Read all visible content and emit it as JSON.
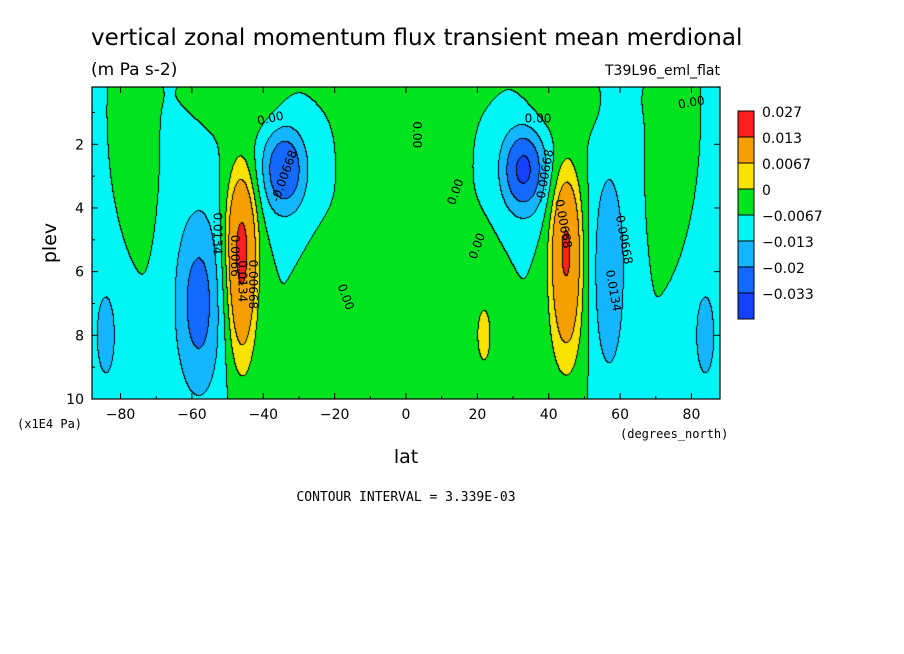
{
  "chart_data": {
    "type": "heatmap",
    "title": "vertical zonal momentum flux transient mean merdional",
    "subtitle": "(m Pa s-2)",
    "run_label": "T39L96_eml_flat",
    "xlabel": "lat",
    "x_units": "(degrees_north)",
    "ylabel": "plev",
    "y_units": "(x1E4 Pa)",
    "footer": "CONTOUR INTERVAL = 3.339E-03",
    "xlim": [
      -88,
      88
    ],
    "ylim": [
      10,
      0.2
    ],
    "x_ticks": [
      -80,
      -60,
      -40,
      -20,
      0,
      20,
      40,
      60,
      80
    ],
    "x_tick_labels": [
      "−80",
      "−60",
      "−40",
      "−20",
      "0",
      "20",
      "40",
      "60",
      "80"
    ],
    "y_ticks": [
      2,
      4,
      6,
      8,
      10
    ],
    "y_tick_labels": [
      "2",
      "4",
      "6",
      "8",
      "10"
    ],
    "legend": {
      "position": "right",
      "levels": [
        "0.027",
        "0.013",
        "0.0067",
        "0",
        "−0.0067",
        "−0.013",
        "−0.02",
        "−0.033"
      ],
      "colors": [
        "#ff1f1f",
        "#f5a000",
        "#f7e200",
        "#00e41f",
        "#00f6f6",
        "#14b6ff",
        "#1469ff",
        "#1440ff"
      ]
    },
    "features": [
      {
        "lat": -46,
        "plev": 5.0,
        "value": 0.027,
        "sigma_lat": 3.0,
        "sigma_p": 1.6
      },
      {
        "lat": 45,
        "plev": 5.0,
        "value": 0.025,
        "sigma_lat": 3.0,
        "sigma_p": 1.6
      },
      {
        "lat": -46,
        "plev": 7.5,
        "value": 0.012,
        "sigma_lat": 3.0,
        "sigma_p": 1.6
      },
      {
        "lat": 45,
        "plev": 7.5,
        "value": 0.011,
        "sigma_lat": 3.5,
        "sigma_p": 1.6
      },
      {
        "lat": -34,
        "plev": 2.8,
        "value": -0.02,
        "sigma_lat": 4.5,
        "sigma_p": 1.0
      },
      {
        "lat": 33,
        "plev": 2.8,
        "value": -0.022,
        "sigma_lat": 4.5,
        "sigma_p": 1.0
      },
      {
        "lat": -58,
        "plev": 7.0,
        "value": -0.016,
        "sigma_lat": 5.0,
        "sigma_p": 2.2
      },
      {
        "lat": 57,
        "plev": 6.0,
        "value": -0.013,
        "sigma_lat": 3.5,
        "sigma_p": 2.5
      },
      {
        "lat": 0,
        "plev": 6.0,
        "value": 0.0045,
        "sigma_lat": 7.0,
        "sigma_p": 6.0
      },
      {
        "lat": 0,
        "plev": 1.0,
        "value": 0.003,
        "sigma_lat": 7.0,
        "sigma_p": 1.5
      },
      {
        "lat": 22,
        "plev": 8.0,
        "value": 0.0075,
        "sigma_lat": 3.5,
        "sigma_p": 1.6
      },
      {
        "lat": -23,
        "plev": 8.0,
        "value": 0.006,
        "sigma_lat": 3.5,
        "sigma_p": 1.5
      },
      {
        "lat": -76,
        "plev": 3.5,
        "value": 0.004,
        "sigma_lat": 3.0,
        "sigma_p": 1.2
      },
      {
        "lat": 75,
        "plev": 3.5,
        "value": 0.004,
        "sigma_lat": 3.0,
        "sigma_p": 1.2
      },
      {
        "lat": -84,
        "plev": 8.0,
        "value": -0.008,
        "sigma_lat": 4.0,
        "sigma_p": 2.0
      },
      {
        "lat": 84,
        "plev": 8.0,
        "value": -0.008,
        "sigma_lat": 4.0,
        "sigma_p": 2.0
      },
      {
        "lat": -43,
        "plev": 0.9,
        "value": 0.004,
        "sigma_lat": 8.0,
        "sigma_p": 0.6
      },
      {
        "lat": 42,
        "plev": 0.9,
        "value": 0.004,
        "sigma_lat": 8.0,
        "sigma_p": 0.6
      }
    ],
    "contour_labels": [
      {
        "text": "0.00",
        "lat": -38,
        "plev": 1.2,
        "rotate": -12
      },
      {
        "text": "-0.00668",
        "lat": -34,
        "plev": 3.0,
        "rotate": -70
      },
      {
        "text": "0.0066",
        "lat": -48,
        "plev": 5.5,
        "rotate": 90
      },
      {
        "text": "0.0134",
        "lat": -53,
        "plev": 4.8,
        "rotate": 90
      },
      {
        "text": "0.0134",
        "lat": -46,
        "plev": 6.3,
        "rotate": 90
      },
      {
        "text": "0.00668",
        "lat": -43,
        "plev": 6.4,
        "rotate": 90
      },
      {
        "text": "0.00",
        "lat": -17,
        "plev": 6.8,
        "rotate": 70
      },
      {
        "text": "0.00",
        "lat": 3,
        "plev": 1.7,
        "rotate": 90
      },
      {
        "text": "0.00",
        "lat": 14,
        "plev": 3.5,
        "rotate": -70
      },
      {
        "text": "0.00",
        "lat": 20,
        "plev": 5.2,
        "rotate": -70
      },
      {
        "text": "0.00",
        "lat": 37,
        "plev": 1.2,
        "rotate": 0
      },
      {
        "text": "-0.00668",
        "lat": 39,
        "plev": 3.0,
        "rotate": -80
      },
      {
        "text": "0.00668",
        "lat": 44,
        "plev": 4.5,
        "rotate": 80
      },
      {
        "text": "0.00668",
        "lat": 61,
        "plev": 5.0,
        "rotate": 80
      },
      {
        "text": "0.0134",
        "lat": 58,
        "plev": 6.6,
        "rotate": 80
      },
      {
        "text": "0.00",
        "lat": 80,
        "plev": 0.7,
        "rotate": -10
      }
    ]
  }
}
